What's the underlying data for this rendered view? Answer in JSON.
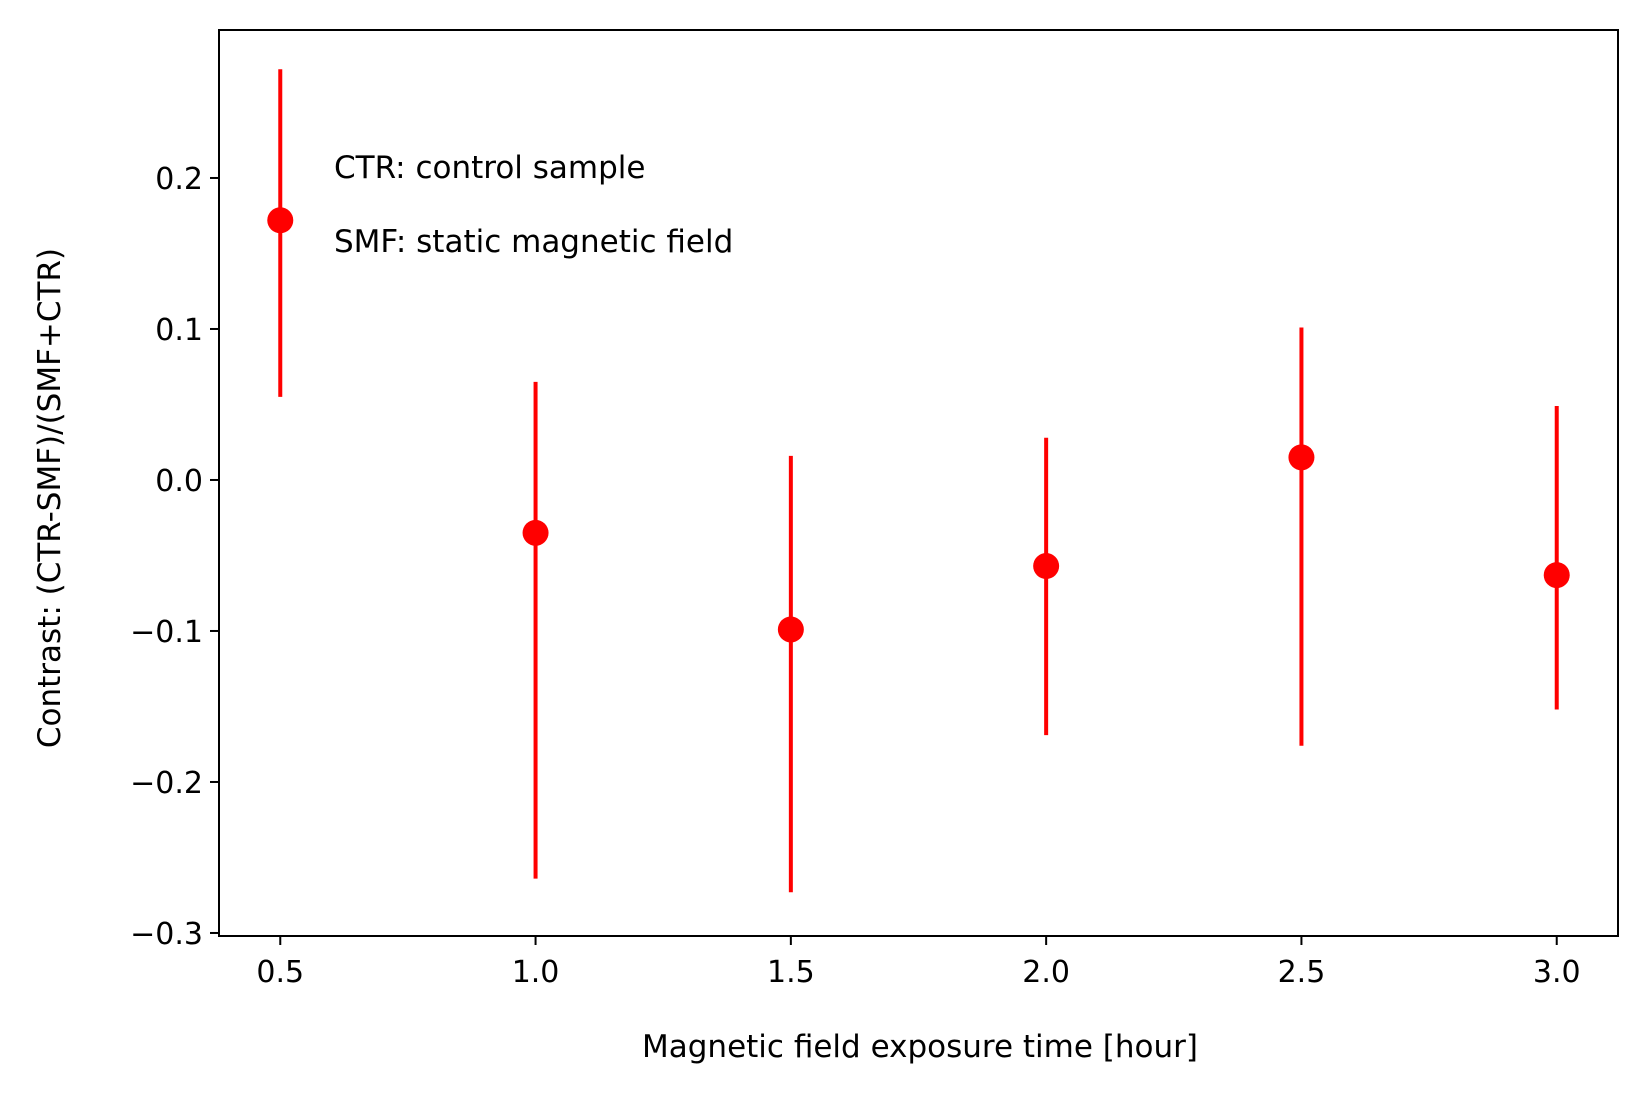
{
  "chart_data": {
    "type": "scatter",
    "title": "",
    "xlabel": "Magnetic field exposure time [hour]",
    "ylabel": "Contrast: (CTR-SMF)/(SMF+CTR)",
    "xlim": [
      0.38,
      3.12
    ],
    "ylim": [
      -0.302,
      0.298
    ],
    "xticks": [
      0.5,
      1.0,
      1.5,
      2.0,
      2.5,
      3.0
    ],
    "xtick_labels": [
      "0.5",
      "1.0",
      "1.5",
      "2.0",
      "2.5",
      "3.0"
    ],
    "yticks": [
      -0.3,
      -0.2,
      -0.1,
      0.0,
      0.1,
      0.2
    ],
    "ytick_labels": [
      "−0.3",
      "−0.2",
      "−0.1",
      "0.0",
      "0.1",
      "0.2"
    ],
    "grid": false,
    "color": "#ff0000",
    "annotations": [
      "CTR: control sample",
      "SMF: static magnetic field"
    ],
    "series": [
      {
        "x": [
          0.5,
          1.0,
          1.5,
          2.0,
          2.5,
          3.0
        ],
        "y": [
          0.172,
          -0.035,
          -0.099,
          -0.057,
          0.015,
          -0.063
        ],
        "yerr_low": [
          0.055,
          -0.264,
          -0.273,
          -0.169,
          -0.176,
          -0.152
        ],
        "yerr_high": [
          0.272,
          0.065,
          0.016,
          0.028,
          0.101,
          0.049
        ]
      }
    ]
  }
}
